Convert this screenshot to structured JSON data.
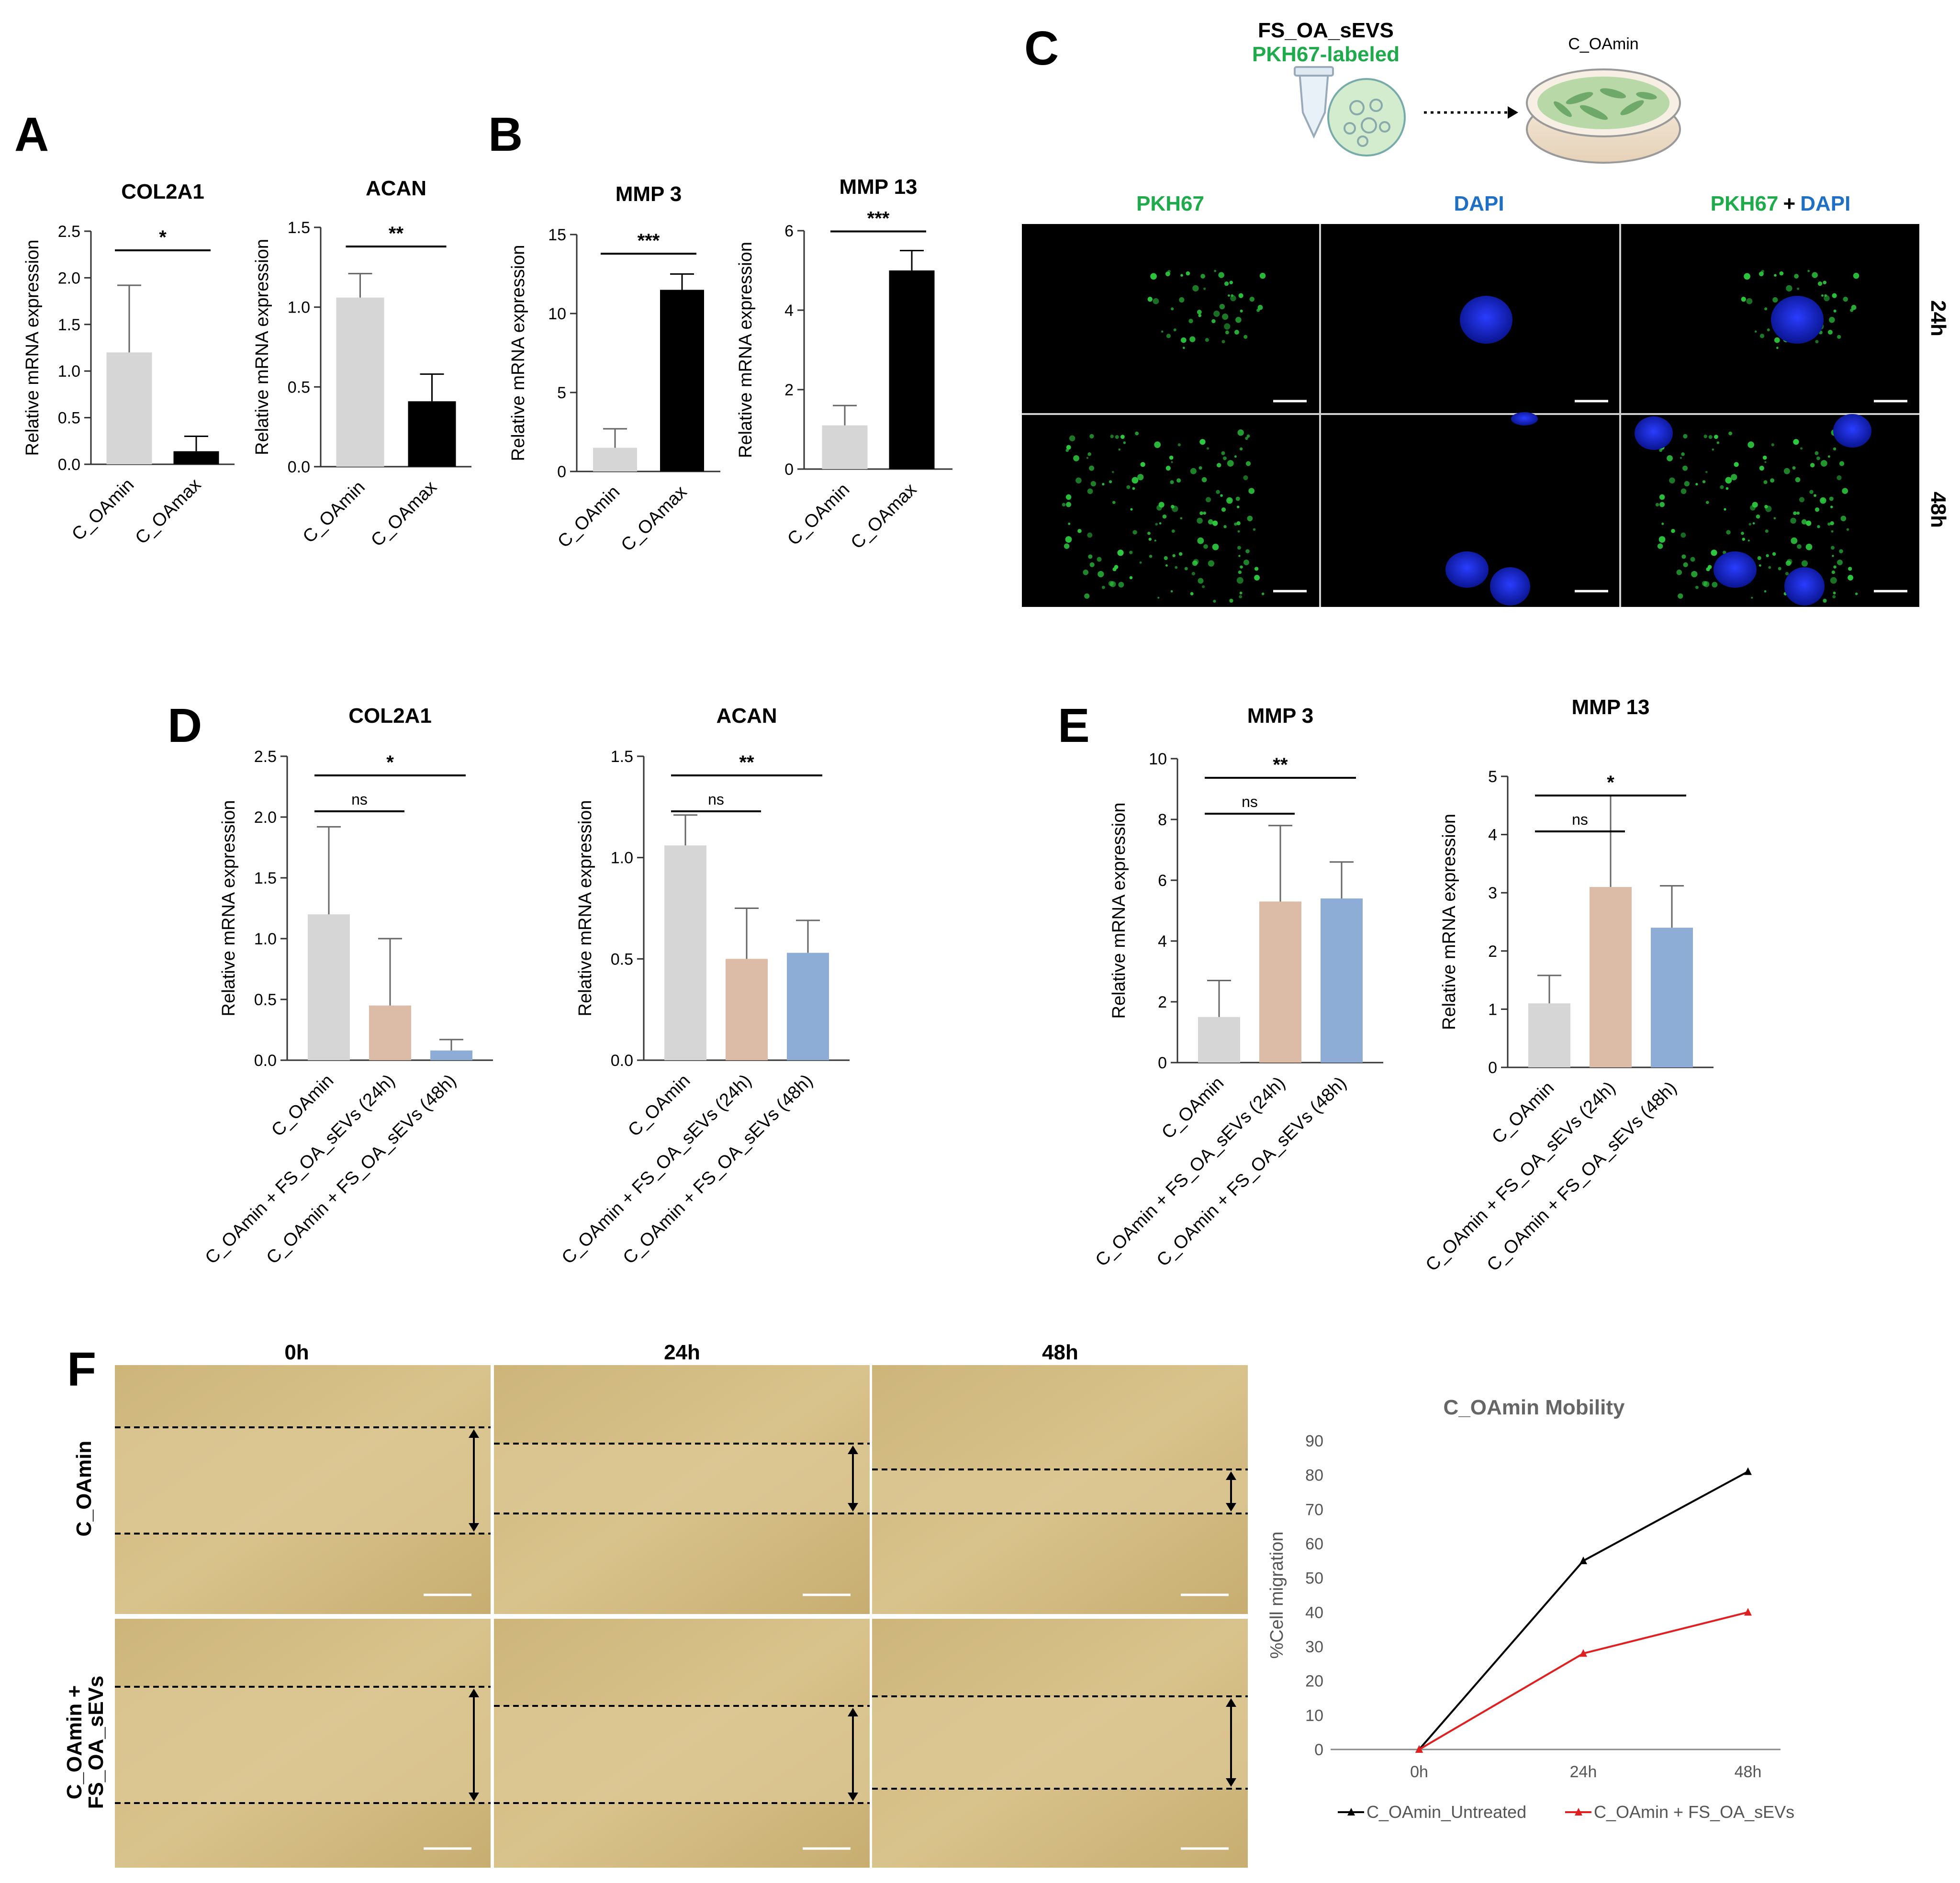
{
  "panels": {
    "A": "A",
    "B": "B",
    "C": "C",
    "D": "D",
    "E": "E",
    "F": "F"
  },
  "bar_y_label": "Relative mRNA expression",
  "colors": {
    "gray": "#d6d6d6",
    "black": "#000000",
    "tan": "#dcbba7",
    "blue": "#8eadd6",
    "green": "#1faa4b",
    "dapi": "#1f6fc4",
    "line_black": "#000000",
    "line_red": "#e02020"
  },
  "panel_c": {
    "source_label": "FS_OA_sEVS",
    "source_sublabel": "PKH67-labeled",
    "target_label": "C_OAmin",
    "col_pkh67": "PKH67",
    "col_dapi": "DAPI",
    "col_merge_a": "PKH67",
    "col_merge_plus": "+",
    "col_merge_b": "DAPI",
    "row_24": "24h",
    "row_48": "48h"
  },
  "panel_f": {
    "col_0": "0h",
    "col_24": "24h",
    "col_48": "48h",
    "row_1": "C_OAmin",
    "row_2a": "C_OAmin +",
    "row_2b": "FS_OA_sEVs"
  },
  "chart_data": [
    {
      "id": "a1",
      "panel": "A",
      "type": "bar",
      "title": "COL2A1",
      "ylabel": "Relative mRNA expression",
      "ylim": [
        0,
        2.5
      ],
      "yticks": [
        "0.0",
        "0.5",
        "1.0",
        "1.5",
        "2.0",
        "2.5"
      ],
      "categories": [
        "C_OAmin",
        "C_OAmax"
      ],
      "values": [
        1.2,
        0.14
      ],
      "errors": [
        0.72,
        0.16
      ],
      "bar_colors": [
        "gray",
        "black"
      ],
      "significance": [
        {
          "between": [
            0,
            1
          ],
          "label": "*"
        }
      ]
    },
    {
      "id": "a2",
      "panel": "A",
      "type": "bar",
      "title": "ACAN",
      "ylabel": "Relative mRNA expression",
      "ylim": [
        0,
        1.5
      ],
      "yticks": [
        "0.0",
        "0.5",
        "1.0",
        "1.5"
      ],
      "categories": [
        "C_OAmin",
        "C_OAmax"
      ],
      "values": [
        1.06,
        0.41
      ],
      "errors": [
        0.15,
        0.17
      ],
      "bar_colors": [
        "gray",
        "black"
      ],
      "significance": [
        {
          "between": [
            0,
            1
          ],
          "label": "**"
        }
      ]
    },
    {
      "id": "b1",
      "panel": "B",
      "type": "bar",
      "title": "MMP 3",
      "ylabel": "Relative mRNA expression",
      "ylim": [
        0,
        15
      ],
      "yticks": [
        "0",
        "5",
        "10",
        "15"
      ],
      "categories": [
        "C_OAmin",
        "C_OAmax"
      ],
      "values": [
        1.5,
        11.5
      ],
      "errors": [
        1.2,
        1.0
      ],
      "bar_colors": [
        "gray",
        "black"
      ],
      "significance": [
        {
          "between": [
            0,
            1
          ],
          "label": "***"
        }
      ]
    },
    {
      "id": "b2",
      "panel": "B",
      "type": "bar",
      "title": "MMP 13",
      "ylabel": "Relative mRNA expression",
      "ylim": [
        0,
        6
      ],
      "yticks": [
        "0",
        "2",
        "4",
        "6"
      ],
      "categories": [
        "C_OAmin",
        "C_OAmax"
      ],
      "values": [
        1.1,
        5.0
      ],
      "errors": [
        0.5,
        0.5
      ],
      "bar_colors": [
        "gray",
        "black"
      ],
      "significance": [
        {
          "between": [
            0,
            1
          ],
          "label": "***"
        }
      ]
    },
    {
      "id": "d1",
      "panel": "D",
      "type": "bar",
      "title": "COL2A1",
      "ylabel": "Relative mRNA expression",
      "ylim": [
        0,
        2.5
      ],
      "yticks": [
        "0.0",
        "0.5",
        "1.0",
        "1.5",
        "2.0",
        "2.5"
      ],
      "categories": [
        "C_OAmin",
        "C_OAmin + FS_OA_sEVs (24h)",
        "C_OAmin + FS_OA_sEVs (48h)"
      ],
      "values": [
        1.2,
        0.45,
        0.08
      ],
      "errors": [
        0.72,
        0.55,
        0.09
      ],
      "bar_colors": [
        "gray",
        "tan",
        "blue"
      ],
      "significance": [
        {
          "between": [
            0,
            1
          ],
          "label": "ns"
        },
        {
          "between": [
            0,
            2
          ],
          "label": "*"
        }
      ]
    },
    {
      "id": "d2",
      "panel": "D",
      "type": "bar",
      "title": "ACAN",
      "ylabel": "Relative mRNA expression",
      "ylim": [
        0,
        1.5
      ],
      "yticks": [
        "0.0",
        "0.5",
        "1.0",
        "1.5"
      ],
      "categories": [
        "C_OAmin",
        "C_OAmin + FS_OA_sEVs (24h)",
        "C_OAmin + FS_OA_sEVs (48h)"
      ],
      "values": [
        1.06,
        0.5,
        0.53
      ],
      "errors": [
        0.15,
        0.25,
        0.16
      ],
      "bar_colors": [
        "gray",
        "tan",
        "blue"
      ],
      "significance": [
        {
          "between": [
            0,
            1
          ],
          "label": "ns"
        },
        {
          "between": [
            0,
            2
          ],
          "label": "**"
        }
      ]
    },
    {
      "id": "e1",
      "panel": "E",
      "type": "bar",
      "title": "MMP 3",
      "ylabel": "Relative mRNA expression",
      "ylim": [
        0,
        10
      ],
      "yticks": [
        "0",
        "2",
        "4",
        "6",
        "8",
        "10"
      ],
      "categories": [
        "C_OAmin",
        "C_OAmin + FS_OA_sEVs (24h)",
        "C_OAmin + FS_OA_sEVs (48h)"
      ],
      "values": [
        1.5,
        5.3,
        5.4
      ],
      "errors": [
        1.2,
        2.5,
        1.2
      ],
      "bar_colors": [
        "gray",
        "tan",
        "blue"
      ],
      "significance": [
        {
          "between": [
            0,
            1
          ],
          "label": "ns"
        },
        {
          "between": [
            0,
            2
          ],
          "label": "**"
        }
      ]
    },
    {
      "id": "e2",
      "panel": "E",
      "type": "bar",
      "title": "MMP 13",
      "ylabel": "Relative mRNA expression",
      "ylim": [
        0,
        5
      ],
      "yticks": [
        "0",
        "1",
        "2",
        "3",
        "4",
        "5"
      ],
      "categories": [
        "C_OAmin",
        "C_OAmin + FS_OA_sEVs (24h)",
        "C_OAmin + FS_OA_sEVs (48h)"
      ],
      "values": [
        1.1,
        3.1,
        2.4
      ],
      "errors": [
        0.48,
        1.57,
        0.72
      ],
      "bar_colors": [
        "gray",
        "tan",
        "blue"
      ],
      "significance": [
        {
          "between": [
            0,
            1
          ],
          "label": "ns"
        },
        {
          "between": [
            0,
            2
          ],
          "label": "*"
        }
      ]
    },
    {
      "id": "f1",
      "panel": "F",
      "type": "line",
      "title": "C_OAmin Mobility",
      "ylabel": "%Cell migration",
      "ylim": [
        0,
        90
      ],
      "yticks": [
        "0",
        "10",
        "20",
        "30",
        "40",
        "50",
        "60",
        "70",
        "80",
        "90"
      ],
      "categories": [
        "0h",
        "24h",
        "48h"
      ],
      "series": [
        {
          "name": "C_OAmin_Untreated",
          "values": [
            0,
            55,
            81
          ],
          "color": "line_black"
        },
        {
          "name": "C_OAmin + FS_OA_sEVs",
          "values": [
            0,
            28,
            40
          ],
          "color": "line_red"
        }
      ],
      "grid": false,
      "legend": "bottom"
    }
  ]
}
